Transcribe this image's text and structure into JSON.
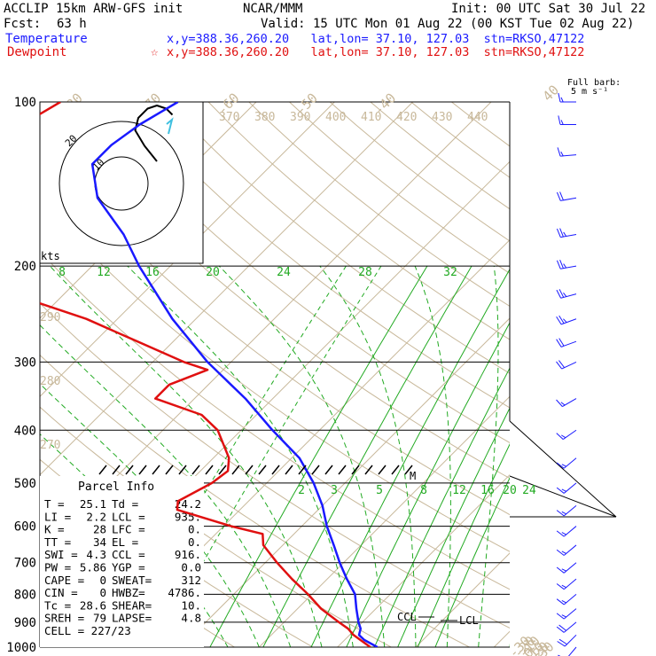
{
  "header": {
    "model": "ACCLIP 15km ARW-GFS init",
    "center": "NCAR/MMM",
    "init": "Init: 00 UTC Sat 30 Jul 22",
    "fcst_label": "Fcst:",
    "fcst_hours": "63 h",
    "valid": "Valid: 15 UTC Mon 01 Aug 22 (00 KST Tue 02 Aug 22)",
    "temp_label": "Temperature",
    "temp_info": "x,y=388.36,260.20   lat,lon= 37.10, 127.03  stn=RKSO,47122",
    "dew_label": "Dewpoint",
    "dew_info": "x,y=388.36,260.20   lat,lon= 37.10, 127.03  stn=RKSO,47122",
    "dew_marker": "☆"
  },
  "colors": {
    "temperature": "#1a1aff",
    "dewpoint": "#e01010",
    "isotherm": "#c8b89a",
    "theta": "#c8b89a",
    "mixing_ratio": "#22aa22",
    "moist_adiabat": "#22aa22",
    "isobar": "#000000"
  },
  "barb_key": {
    "line1": "Full barb:",
    "line2": "5 m s⁻¹"
  },
  "hodograph": {
    "units": "kts",
    "ring_labels": [
      "10",
      "20"
    ]
  },
  "annotations": {
    "ccl": "CCL",
    "lcl": "LCL",
    "m_marker": "M"
  },
  "parcel_info": {
    "title": "Parcel Info",
    "rows": [
      [
        "T   =",
        "25.1",
        "Td   =",
        "24.2"
      ],
      [
        "LI  =",
        "2.2",
        "LCL  =",
        "935."
      ],
      [
        "K   =",
        "28",
        "LFC  =",
        "0."
      ],
      [
        "TT  =",
        "34",
        "EL   =",
        "0."
      ],
      [
        "SWI =",
        "4.3",
        "CCL  =",
        "916."
      ],
      [
        "PW  =",
        "5.86",
        "YGP  =",
        "0.0"
      ],
      [
        "CAPE =",
        "0",
        "SWEAT=",
        "312"
      ],
      [
        "CIN  =",
        "0",
        "HWBZ=",
        "4786."
      ],
      [
        "Tc  =",
        "28.6",
        "SHEAR=",
        "10."
      ],
      [
        "SREH =",
        "79",
        "LAPSE=",
        "4.8"
      ]
    ],
    "cell": "CELL = 227/23"
  },
  "chart_data": {
    "type": "line",
    "pressure_levels": [
      "100",
      "200",
      "300",
      "400",
      "500",
      "600",
      "700",
      "800",
      "900",
      "1000"
    ],
    "isotherm_labels": [
      "-80",
      "-70",
      "-60",
      "-50",
      "-40",
      "-30",
      "-20",
      "-10",
      "0",
      "10",
      "20",
      "30",
      "40"
    ],
    "theta_labels_top": [
      "370",
      "380",
      "390",
      "400",
      "410",
      "420",
      "430",
      "440"
    ],
    "theta_labels_left": [
      "290",
      "280",
      "270"
    ],
    "mixing_ratio_labels_upper": [
      "8",
      "12",
      "16",
      "20",
      "24",
      "28",
      "32"
    ],
    "mixing_ratio_labels_lower": [
      "2",
      "3",
      "5",
      "8",
      "12",
      "16",
      "20",
      "24"
    ],
    "temperature_profile": [
      [
        1000,
        25.1
      ],
      [
        970,
        22.5
      ],
      [
        950,
        21.2
      ],
      [
        925,
        20.6
      ],
      [
        900,
        19.5
      ],
      [
        850,
        17.5
      ],
      [
        800,
        15.5
      ],
      [
        750,
        12.5
      ],
      [
        700,
        9.5
      ],
      [
        650,
        6.5
      ],
      [
        600,
        3.2
      ],
      [
        550,
        0.0
      ],
      [
        500,
        -4.0
      ],
      [
        450,
        -9.0
      ],
      [
        400,
        -16.0
      ],
      [
        350,
        -23.5
      ],
      [
        300,
        -33.0
      ],
      [
        250,
        -43.0
      ],
      [
        200,
        -54.0
      ],
      [
        175,
        -60.0
      ],
      [
        150,
        -68.0
      ],
      [
        130,
        -73.0
      ],
      [
        120,
        -73.0
      ],
      [
        110,
        -72.0
      ],
      [
        100,
        -70.0
      ]
    ],
    "dewpoint_profile": [
      [
        1000,
        24.2
      ],
      [
        970,
        22.0
      ],
      [
        950,
        20.5
      ],
      [
        925,
        19.0
      ],
      [
        900,
        17.0
      ],
      [
        850,
        13.0
      ],
      [
        800,
        9.5
      ],
      [
        750,
        5.5
      ],
      [
        700,
        1.5
      ],
      [
        650,
        -2.5
      ],
      [
        620,
        -4.0
      ],
      [
        600,
        -9.0
      ],
      [
        560,
        -18.0
      ],
      [
        540,
        -19.0
      ],
      [
        500,
        -17.0
      ],
      [
        475,
        -16.5
      ],
      [
        450,
        -18.0
      ],
      [
        400,
        -23.0
      ],
      [
        375,
        -27.0
      ],
      [
        350,
        -35.0
      ],
      [
        330,
        -35.0
      ],
      [
        310,
        -32.0
      ],
      [
        300,
        -36.0
      ],
      [
        250,
        -54.0
      ],
      [
        230,
        -64.0
      ],
      [
        200,
        -70.0
      ],
      [
        175,
        -78.0
      ],
      [
        150,
        -86.0
      ],
      [
        130,
        -89.0
      ],
      [
        110,
        -87.0
      ],
      [
        100,
        -85.0
      ]
    ],
    "xlim_at_1000hpa": [
      -18,
      42
    ],
    "ylim": [
      100,
      1000
    ],
    "wind_barbs": [
      [
        100,
        270,
        15
      ],
      [
        110,
        270,
        15
      ],
      [
        125,
        265,
        15
      ],
      [
        150,
        260,
        20
      ],
      [
        175,
        260,
        25
      ],
      [
        200,
        260,
        25
      ],
      [
        225,
        255,
        25
      ],
      [
        250,
        250,
        25
      ],
      [
        275,
        250,
        20
      ],
      [
        300,
        245,
        20
      ],
      [
        350,
        240,
        15
      ],
      [
        400,
        235,
        15
      ],
      [
        450,
        230,
        15
      ],
      [
        500,
        230,
        15
      ],
      [
        550,
        230,
        15
      ],
      [
        600,
        230,
        15
      ],
      [
        650,
        230,
        15
      ],
      [
        700,
        230,
        15
      ],
      [
        750,
        230,
        15
      ],
      [
        800,
        230,
        15
      ],
      [
        850,
        230,
        15
      ],
      [
        900,
        230,
        20
      ],
      [
        950,
        225,
        20
      ],
      [
        1000,
        220,
        10
      ]
    ],
    "hodograph_trace": [
      [
        0,
        0
      ],
      [
        -4,
        5
      ],
      [
        -7,
        10
      ],
      [
        -6,
        14
      ],
      [
        -3,
        17
      ],
      [
        0,
        18
      ],
      [
        3,
        17
      ],
      [
        5,
        15
      ]
    ]
  }
}
